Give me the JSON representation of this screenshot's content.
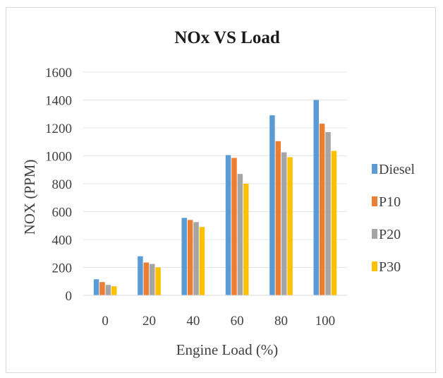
{
  "chart_data": {
    "type": "bar",
    "title": "NOx VS Load",
    "xlabel": "Engine Load (%)",
    "ylabel": "NOX (PPM)",
    "categories": [
      "0",
      "20",
      "40",
      "60",
      "80",
      "100"
    ],
    "ylim": [
      0,
      1600
    ],
    "yticks": [
      "0",
      "200",
      "400",
      "600",
      "800",
      "1000",
      "1200",
      "1400",
      "1600"
    ],
    "grid": true,
    "legend_position": "right",
    "series": [
      {
        "name": "Diesel",
        "color": "#5b9bd5",
        "values": [
          115,
          280,
          555,
          1005,
          1290,
          1400
        ]
      },
      {
        "name": "P10",
        "color": "#ed7d31",
        "values": [
          95,
          235,
          540,
          985,
          1105,
          1230
        ]
      },
      {
        "name": "P20",
        "color": "#a5a5a5",
        "values": [
          75,
          225,
          525,
          870,
          1025,
          1170
        ]
      },
      {
        "name": "P30",
        "color": "#ffc000",
        "values": [
          65,
          200,
          490,
          800,
          990,
          1035
        ]
      }
    ]
  }
}
